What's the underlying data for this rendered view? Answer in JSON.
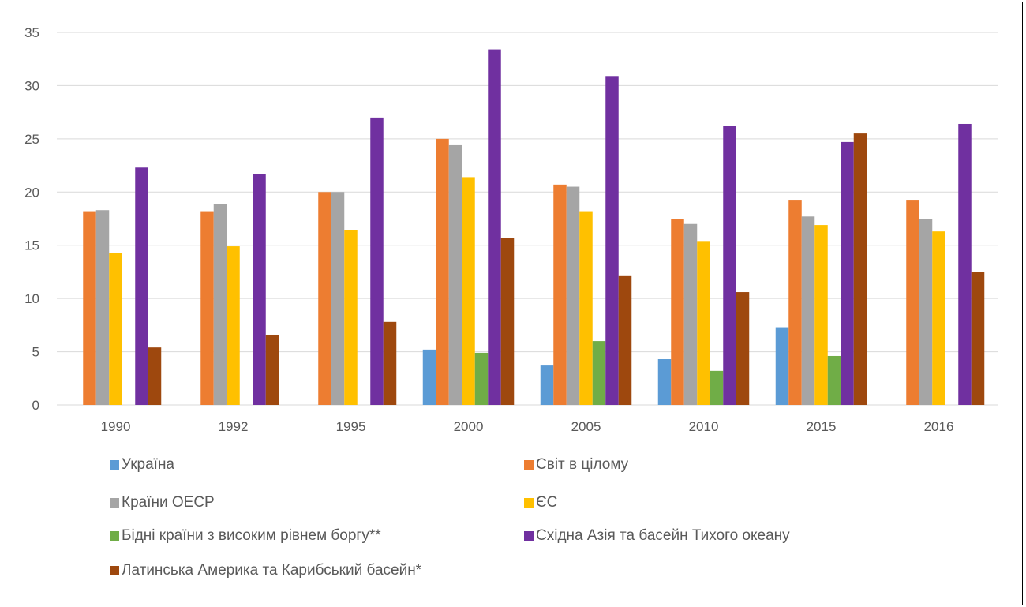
{
  "chart_data": {
    "type": "bar",
    "title": "",
    "xlabel": "",
    "ylabel": "",
    "ylim": [
      0,
      35
    ],
    "yticks": [
      0,
      5,
      10,
      15,
      20,
      25,
      30,
      35
    ],
    "grid": true,
    "legend_position": "bottom",
    "categories": [
      "1990",
      "1992",
      "1995",
      "2000",
      "2005",
      "2010",
      "2015",
      "2016"
    ],
    "series": [
      {
        "name": "Україна",
        "color": "#5B9BD5",
        "values": [
          null,
          null,
          null,
          5.2,
          3.7,
          4.3,
          7.3,
          null
        ]
      },
      {
        "name": "Світ в цілому",
        "color": "#ED7D31",
        "values": [
          18.2,
          18.2,
          20.0,
          25.0,
          20.7,
          17.5,
          19.2,
          19.2
        ]
      },
      {
        "name": "Країни ОЕСР",
        "color": "#A5A5A5",
        "values": [
          18.3,
          18.9,
          20.0,
          24.4,
          20.5,
          17.0,
          17.7,
          17.5
        ]
      },
      {
        "name": "ЄС",
        "color": "#FFC000",
        "values": [
          14.3,
          14.9,
          16.4,
          21.4,
          18.2,
          15.4,
          16.9,
          16.3
        ]
      },
      {
        "name": "Бідні країни з високим рівнем боргу**",
        "color": "#70AD47",
        "values": [
          null,
          null,
          null,
          4.9,
          6.0,
          3.2,
          4.6,
          null
        ]
      },
      {
        "name": "Східна Азія та басейн Тихого океану",
        "color": "#7030A0",
        "values": [
          22.3,
          21.7,
          27.0,
          33.4,
          30.9,
          26.2,
          24.7,
          26.4
        ]
      },
      {
        "name": "Латинська Америка та Карибський басейн*",
        "color": "#9E480E",
        "values": [
          5.4,
          6.6,
          7.8,
          15.7,
          12.1,
          10.6,
          25.5,
          12.5
        ]
      }
    ]
  }
}
